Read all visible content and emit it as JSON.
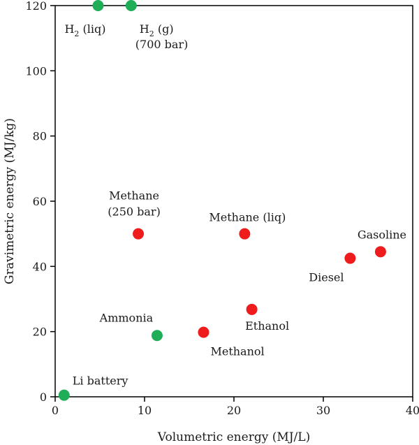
{
  "chart_data": {
    "type": "scatter",
    "xlabel": "Volumetric energy (MJ/L)",
    "ylabel": "Gravimetric energy (MJ/kg)",
    "xlim": [
      0,
      40
    ],
    "ylim": [
      0,
      120
    ],
    "xticks": [
      "0",
      "10",
      "20",
      "30",
      "40"
    ],
    "yticks": [
      "0",
      "20",
      "40",
      "60",
      "80",
      "100",
      "120"
    ],
    "grid": false,
    "colors": {
      "green": "#1fad58",
      "red": "#ee1c1c"
    },
    "points": [
      {
        "name": "H2 (liq)",
        "label": [
          "H",
          "2",
          " (liq)"
        ],
        "x": 4.8,
        "y": 120,
        "color": "green"
      },
      {
        "name": "H2 (g) (700 bar)",
        "label": [
          "H",
          "2",
          " (g)"
        ],
        "label2": "(700 bar)",
        "x": 8.5,
        "y": 120,
        "color": "green"
      },
      {
        "name": "Methane (250 bar)",
        "label": [
          "Methane"
        ],
        "label2": "(250 bar)",
        "x": 9.3,
        "y": 50,
        "color": "red"
      },
      {
        "name": "Methane (liq)",
        "label": [
          "Methane (liq)"
        ],
        "x": 21.2,
        "y": 50,
        "color": "red"
      },
      {
        "name": "Gasoline",
        "label": [
          "Gasoline"
        ],
        "x": 36.4,
        "y": 44.5,
        "color": "red"
      },
      {
        "name": "Diesel",
        "label": [
          "Diesel"
        ],
        "x": 33.0,
        "y": 42.5,
        "color": "red"
      },
      {
        "name": "Ethanol",
        "label": [
          "Ethanol"
        ],
        "x": 22.0,
        "y": 26.8,
        "color": "red"
      },
      {
        "name": "Methanol",
        "label": [
          "Methanol"
        ],
        "x": 16.6,
        "y": 19.8,
        "color": "red"
      },
      {
        "name": "Ammonia",
        "label": [
          "Ammonia"
        ],
        "x": 11.4,
        "y": 18.8,
        "color": "green"
      },
      {
        "name": "Li battery",
        "label": [
          "Li battery"
        ],
        "x": 1.0,
        "y": 0.5,
        "color": "green"
      }
    ]
  }
}
